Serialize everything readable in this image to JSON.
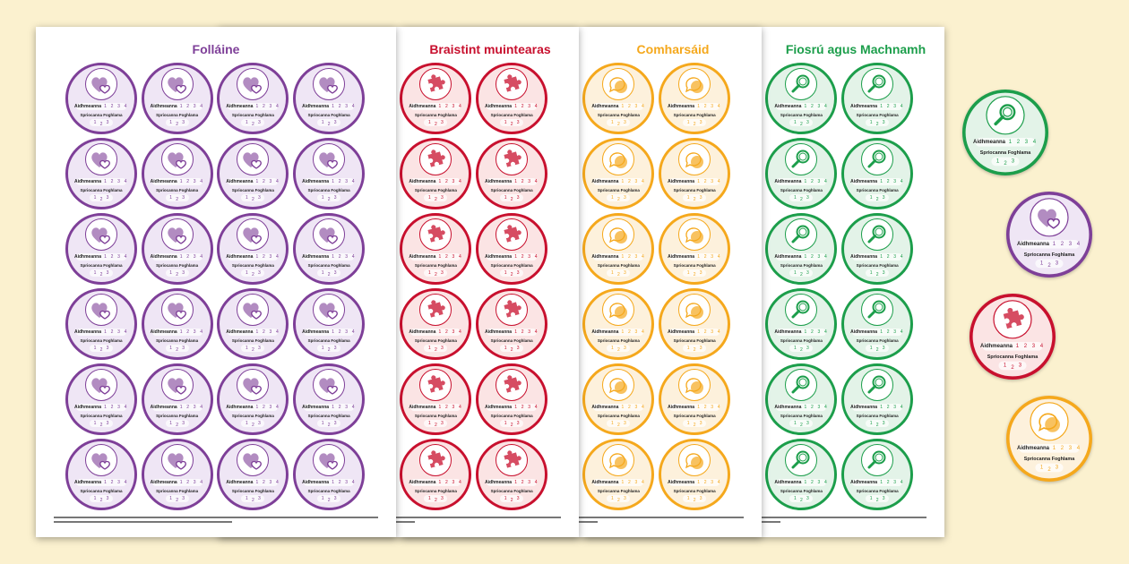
{
  "badge_labels": {
    "aims": "Aidhmeanna",
    "aims_numbers": [
      "1",
      "2",
      "3",
      "4"
    ],
    "goals": "Spriocanna Foghlama",
    "goals_numbers": [
      "1",
      "2",
      "3"
    ]
  },
  "sheets": [
    {
      "title": "Folláine",
      "color": "#7e3f98",
      "tint": "#efe6f5",
      "icon": "hearts-icon"
    },
    {
      "title": "Braistint muintearas",
      "color": "#c8102e",
      "tint": "#fbe4e4",
      "icon": "puzzle-piece-icon"
    },
    {
      "title": "Comharsáid",
      "color": "#f5a81c",
      "tint": "#fdf1dc",
      "icon": "speech-bubble-icon"
    },
    {
      "title": "Fiosrú agus Machnamh",
      "color": "#1c9e4b",
      "tint": "#e3f3e8",
      "icon": "magnifier-icon"
    }
  ],
  "loose_badges": [
    {
      "sheet": 3
    },
    {
      "sheet": 0
    },
    {
      "sheet": 1
    },
    {
      "sheet": 2
    }
  ]
}
